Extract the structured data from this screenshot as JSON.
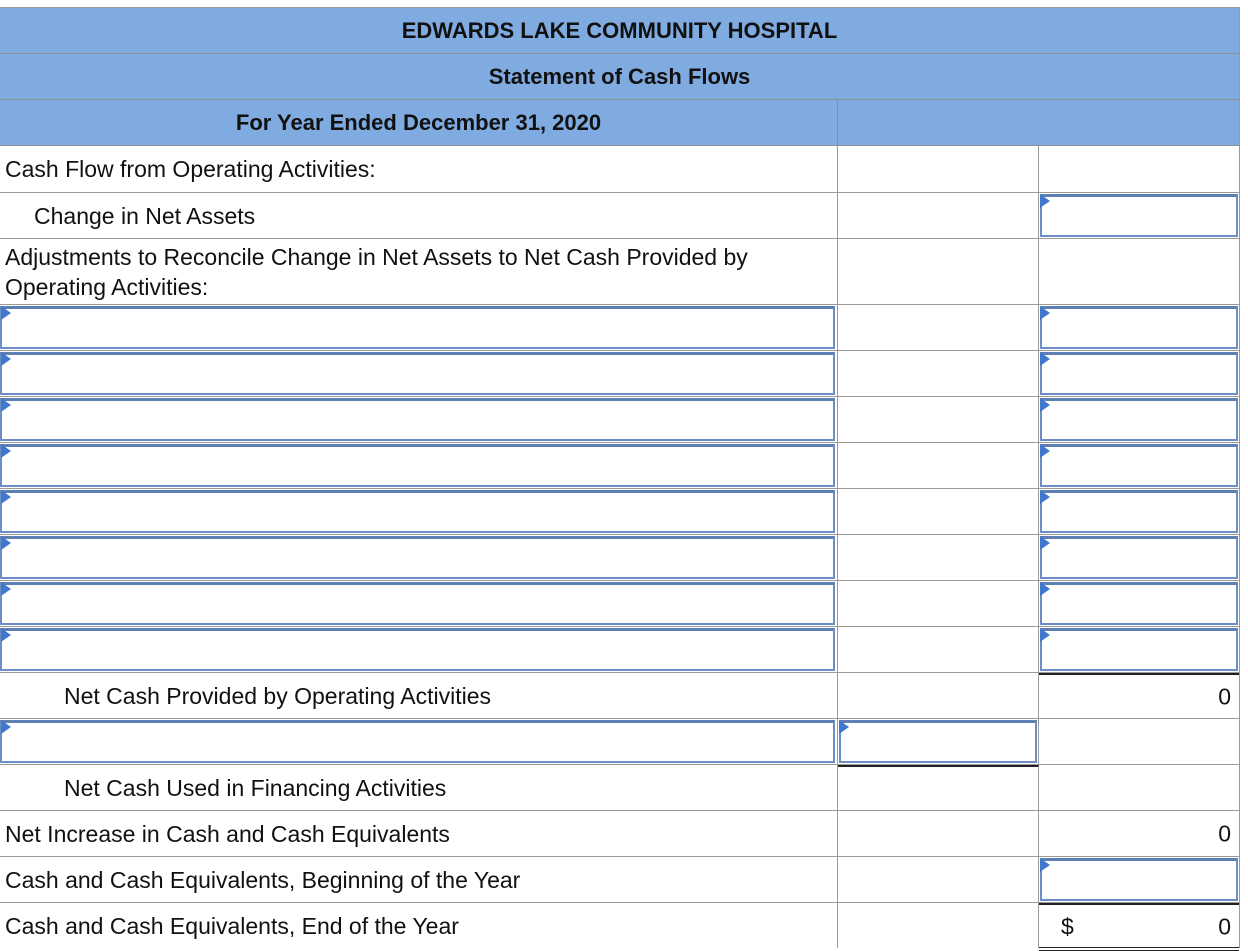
{
  "statement": {
    "company": "EDWARDS LAKE COMMUNITY HOSPITAL",
    "title": "Statement of Cash Flows",
    "period": "For Year Ended December 31, 2020"
  },
  "rows": {
    "operating_heading": "Cash Flow from Operating Activities:",
    "change_net_assets": "Change in Net Assets",
    "adjustments_heading": "Adjustments to Reconcile Change in Net Assets to Net Cash Provided by Operating Activities:",
    "net_cash_operating": "Net Cash Provided by Operating Activities",
    "net_cash_operating_value": "0",
    "net_cash_financing": "Net Cash Used in Financing Activities",
    "net_increase": "Net Increase in Cash and Cash Equivalents",
    "net_increase_value": "0",
    "cash_beginning": "Cash and Cash Equivalents, Beginning of the Year",
    "cash_end": "Cash and Cash Equivalents, End of the Year",
    "cash_end_currency": "$",
    "cash_end_value": "0"
  },
  "colors": {
    "header_bg": "#80abe0",
    "input_border": "#6b8fc4",
    "dropdown_marker": "#3f78cc",
    "grid_line": "#9a9a9a"
  }
}
